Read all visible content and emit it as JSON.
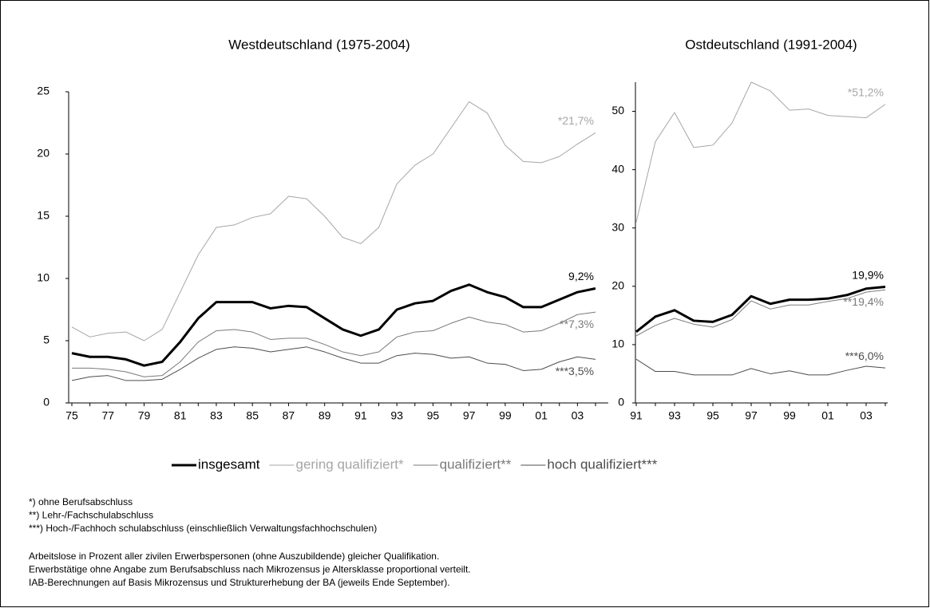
{
  "chart_data": [
    {
      "type": "line",
      "title": "Westdeutschland (1975-2004)",
      "categories": [
        "75",
        null,
        "77",
        null,
        "79",
        null,
        "81",
        null,
        "83",
        null,
        "85",
        null,
        "87",
        null,
        "89",
        null,
        "91",
        null,
        "93",
        null,
        "95",
        null,
        "97",
        null,
        "99",
        null,
        "01",
        null,
        "03",
        null
      ],
      "ylim": [
        0,
        25
      ],
      "yticks": [
        0,
        5,
        10,
        15,
        20,
        25
      ],
      "series": [
        {
          "name": "insgesamt",
          "color": "#000000",
          "line_width": 3,
          "values": [
            4.0,
            3.7,
            3.7,
            3.5,
            3.0,
            3.3,
            4.9,
            6.8,
            8.1,
            8.1,
            8.1,
            7.6,
            7.8,
            7.7,
            6.8,
            5.9,
            5.4,
            5.9,
            7.5,
            8.0,
            8.2,
            9.0,
            9.5,
            8.9,
            8.5,
            7.7,
            7.7,
            8.3,
            8.9,
            9.2
          ],
          "value_labels": [
            null,
            null,
            null,
            null,
            null,
            null,
            null,
            null,
            null,
            null,
            null,
            null,
            null,
            null,
            null,
            null,
            null,
            null,
            null,
            null,
            null,
            null,
            null,
            null,
            null,
            null,
            null,
            null,
            null,
            "9,2%"
          ]
        },
        {
          "name": "gering qualifiziert*",
          "color": "#a6a6a6",
          "line_width": 1,
          "values": [
            6.1,
            5.3,
            5.6,
            5.7,
            5.0,
            5.9,
            8.9,
            11.9,
            14.1,
            14.3,
            14.9,
            15.2,
            16.6,
            16.4,
            15.0,
            13.3,
            12.8,
            14.1,
            17.6,
            19.1,
            20.0,
            22.1,
            24.2,
            23.3,
            20.7,
            19.4,
            19.3,
            19.8,
            20.8,
            21.7
          ],
          "value_labels": [
            null,
            null,
            null,
            null,
            null,
            null,
            null,
            null,
            null,
            null,
            null,
            null,
            null,
            null,
            null,
            null,
            null,
            null,
            null,
            null,
            null,
            null,
            null,
            null,
            null,
            null,
            null,
            null,
            null,
            "*21,7%"
          ]
        },
        {
          "name": "qualifiziert**",
          "color": "#7a7a7a",
          "line_width": 1,
          "values": [
            2.8,
            2.8,
            2.7,
            2.5,
            2.1,
            2.2,
            3.3,
            4.9,
            5.8,
            5.9,
            5.7,
            5.1,
            5.2,
            5.2,
            4.7,
            4.1,
            3.8,
            4.1,
            5.3,
            5.7,
            5.8,
            6.4,
            6.9,
            6.5,
            6.3,
            5.7,
            5.8,
            6.4,
            7.1,
            7.3
          ],
          "value_labels": [
            null,
            null,
            null,
            null,
            null,
            null,
            null,
            null,
            null,
            null,
            null,
            null,
            null,
            null,
            null,
            null,
            null,
            null,
            null,
            null,
            null,
            null,
            null,
            null,
            null,
            null,
            null,
            null,
            null,
            "**7,3%"
          ]
        },
        {
          "name": "hoch qualifiziert***",
          "color": "#4d4d4d",
          "line_width": 1,
          "values": [
            1.8,
            2.1,
            2.2,
            1.8,
            1.8,
            1.9,
            2.7,
            3.6,
            4.3,
            4.5,
            4.4,
            4.1,
            4.3,
            4.5,
            4.1,
            3.6,
            3.2,
            3.2,
            3.8,
            4.0,
            3.9,
            3.6,
            3.7,
            3.2,
            3.1,
            2.6,
            2.7,
            3.3,
            3.7,
            3.5
          ],
          "value_labels": [
            null,
            null,
            null,
            null,
            null,
            null,
            null,
            null,
            null,
            null,
            null,
            null,
            null,
            null,
            null,
            null,
            null,
            null,
            null,
            null,
            null,
            null,
            null,
            null,
            null,
            null,
            null,
            null,
            null,
            "***3,5%"
          ]
        }
      ]
    },
    {
      "type": "line",
      "title": "Ostdeutschland (1991-2004)",
      "categories": [
        "91",
        null,
        "93",
        null,
        "95",
        null,
        "97",
        null,
        "99",
        null,
        "01",
        null,
        "03",
        null
      ],
      "ylim": [
        0,
        55
      ],
      "yticks": [
        0,
        10,
        20,
        30,
        40,
        50
      ],
      "series": [
        {
          "color": "#000000",
          "line_width": 3,
          "values": [
            12.2,
            14.8,
            15.9,
            14.1,
            13.9,
            15.1,
            18.3,
            17.0,
            17.7,
            17.7,
            17.9,
            18.5,
            19.6,
            19.9
          ],
          "value_labels": [
            null,
            null,
            null,
            null,
            null,
            null,
            null,
            null,
            null,
            null,
            null,
            null,
            null,
            "19,9%"
          ]
        },
        {
          "color": "#a6a6a6",
          "line_width": 1,
          "values": [
            31.0,
            44.8,
            49.8,
            43.8,
            44.2,
            48.0,
            55.0,
            53.5,
            50.2,
            50.4,
            49.3,
            49.1,
            48.9,
            51.2
          ],
          "value_labels": [
            null,
            null,
            null,
            null,
            null,
            null,
            null,
            null,
            null,
            null,
            null,
            null,
            null,
            "*51,2%"
          ]
        },
        {
          "color": "#7a7a7a",
          "line_width": 1,
          "values": [
            11.5,
            13.3,
            14.5,
            13.5,
            13.0,
            14.3,
            17.5,
            16.1,
            16.8,
            16.8,
            17.4,
            17.9,
            19.0,
            19.4
          ],
          "value_labels": [
            null,
            null,
            null,
            null,
            null,
            null,
            null,
            null,
            null,
            null,
            null,
            null,
            null,
            "**19,4%"
          ]
        },
        {
          "color": "#4d4d4d",
          "line_width": 1,
          "values": [
            7.5,
            5.4,
            5.4,
            4.8,
            4.8,
            4.8,
            5.9,
            5.0,
            5.5,
            4.8,
            4.8,
            5.6,
            6.3,
            6.0
          ],
          "value_labels": [
            null,
            null,
            null,
            null,
            null,
            null,
            null,
            null,
            null,
            null,
            null,
            null,
            null,
            "***6,0%"
          ]
        }
      ]
    }
  ],
  "notes": [
    "*) ohne Berufsabschluss",
    "**) Lehr-/Fachschulabschluss",
    "***) Hoch-/Fachhoch schulabschluss (einschließlich Verwaltungsfachhochschulen)"
  ],
  "source": [
    "Arbeitslose in Prozent aller zivilen Erwerbspersonen (ohne Auszubildende) gleicher Qualifikation.",
    "Erwerbstätige ohne Angabe zum Berufsabschluss nach Mikrozensus je Altersklasse proportional verteilt.",
    "IAB-Berechnungen auf Basis Mikrozensus und Strukturerhebung der BA (jeweils Ende September)."
  ]
}
